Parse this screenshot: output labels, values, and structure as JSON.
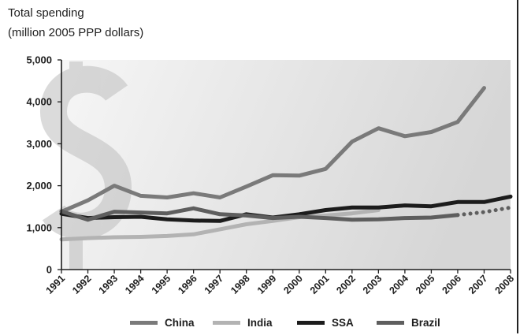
{
  "chart_data": {
    "type": "line",
    "title": "",
    "ylabel_lines": [
      "Total spending",
      "(million 2005 PPP dollars)"
    ],
    "xlabel": "",
    "ylim": [
      0,
      5000
    ],
    "yticks": [
      0,
      1000,
      2000,
      3000,
      4000,
      5000
    ],
    "ytick_labels": [
      "0",
      "1,000",
      "2,000",
      "3,000",
      "4,000",
      "5,000"
    ],
    "x": [
      "1991",
      "1992",
      "1993",
      "1994",
      "1995",
      "1996",
      "1997",
      "1998",
      "1999",
      "2000",
      "2001",
      "2002",
      "2003",
      "2004",
      "2005",
      "2006",
      "2007",
      "2008"
    ],
    "grid": false,
    "legend_position": "bottom",
    "series": [
      {
        "name": "China",
        "color": "#7a7a7a",
        "values": [
          1380,
          1650,
          2000,
          1760,
          1720,
          1820,
          1720,
          1980,
          2250,
          2240,
          2400,
          3050,
          3370,
          3180,
          3280,
          3520,
          4330,
          null
        ]
      },
      {
        "name": "India",
        "color": "#b3b3b3",
        "values": [
          720,
          750,
          770,
          780,
          800,
          840,
          960,
          1080,
          1160,
          1250,
          1290,
          1340,
          1420,
          null,
          null,
          null,
          null,
          null
        ]
      },
      {
        "name": "SSA",
        "color": "#1c1c1c",
        "values": [
          1330,
          1230,
          1250,
          1260,
          1200,
          1170,
          1160,
          1320,
          1240,
          1320,
          1420,
          1480,
          1480,
          1530,
          1510,
          1610,
          1610,
          1740
        ]
      },
      {
        "name": "Brazil",
        "color": "#5e5e5e",
        "values": [
          1390,
          1190,
          1380,
          1360,
          1340,
          1460,
          1320,
          1290,
          1230,
          1260,
          1230,
          1190,
          1200,
          1230,
          1240,
          1300,
          1370,
          1480
        ],
        "dotted_from": "2006"
      }
    ]
  },
  "decor": {
    "dollar_icon": "dollar-sign-watermark-icon",
    "background_gradient": [
      "#f4f4f4",
      "#d8d8d8"
    ]
  }
}
